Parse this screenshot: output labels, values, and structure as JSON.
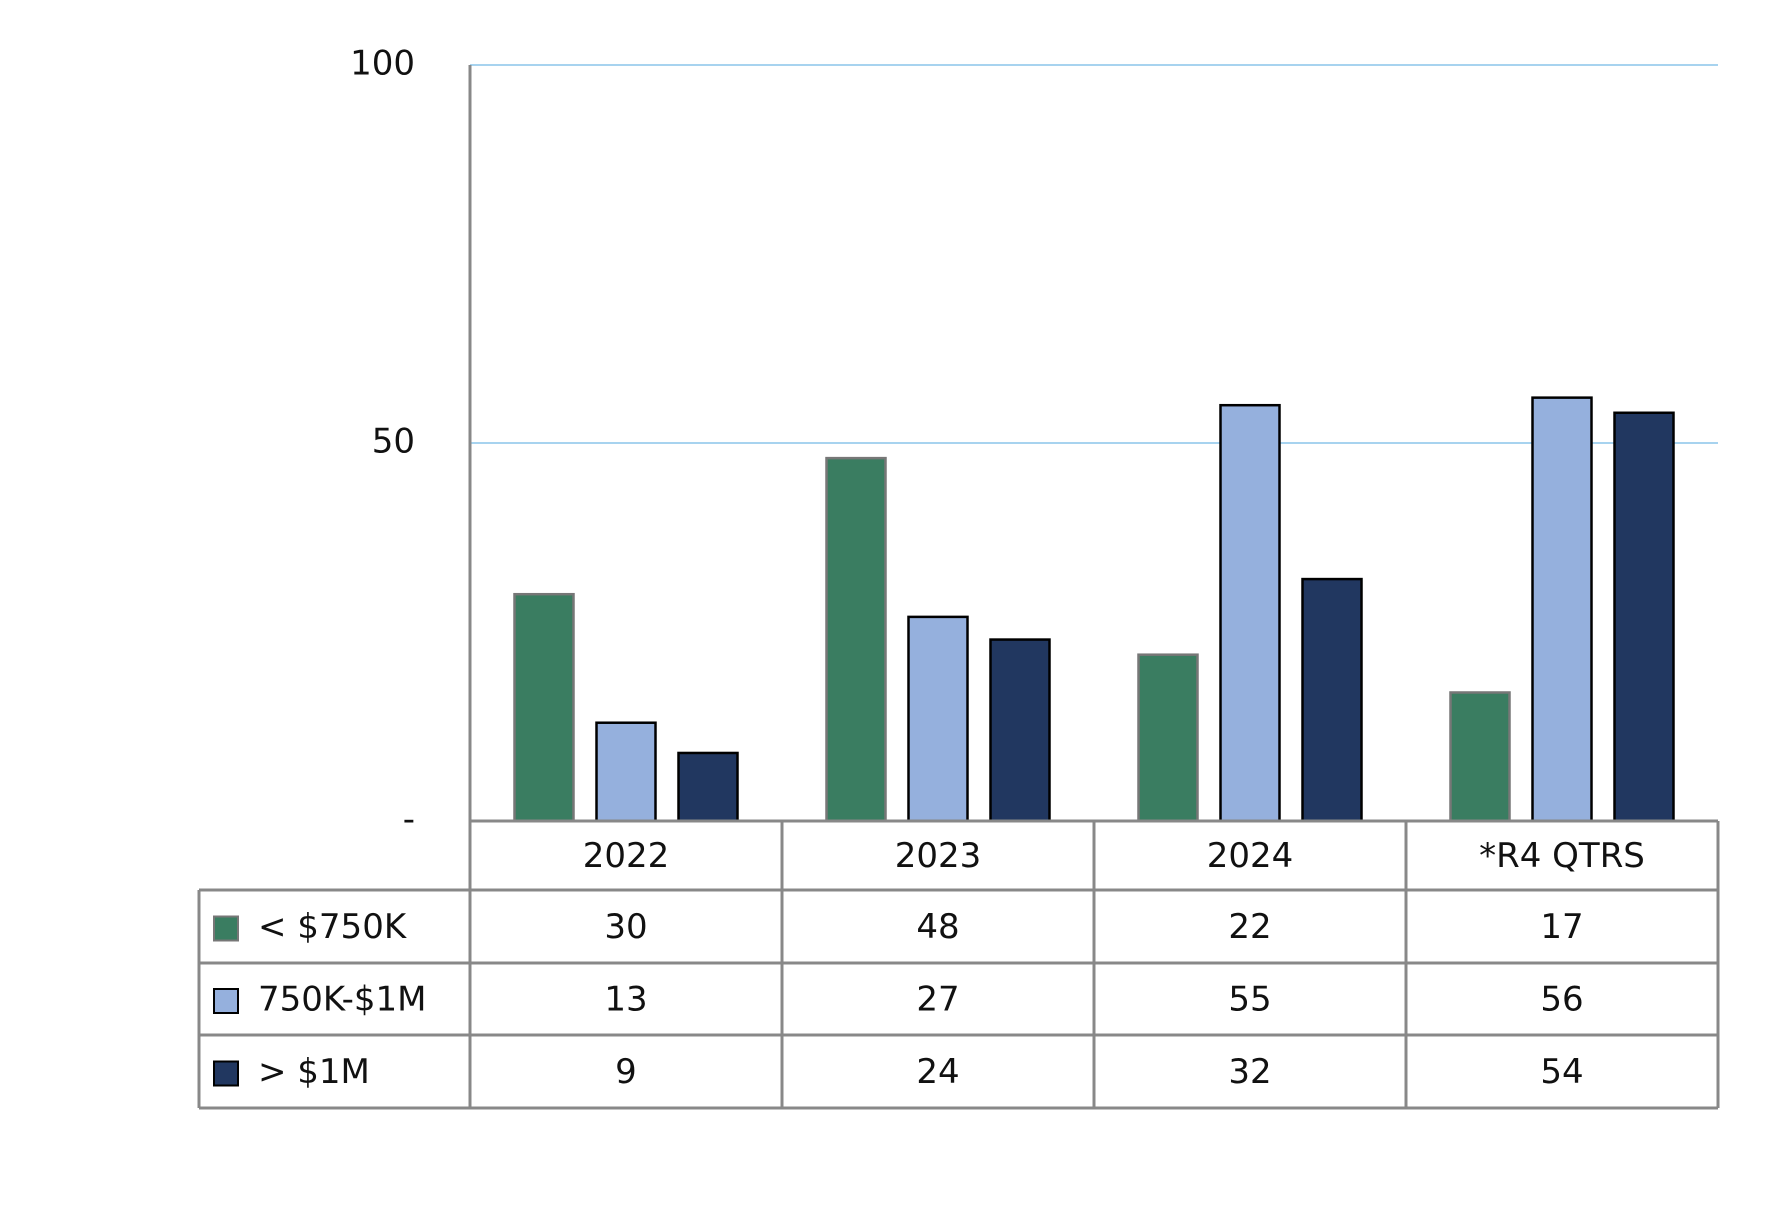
{
  "chart_data": {
    "type": "bar",
    "categories": [
      "2022",
      "2023",
      "2024",
      "*R4 QTRS"
    ],
    "series": [
      {
        "name": "< $750K",
        "color": "#3a7d61",
        "values": [
          30,
          48,
          22,
          17
        ]
      },
      {
        "name": "750K-$1M",
        "color": "#95b0dd",
        "values": [
          13,
          27,
          55,
          56
        ]
      },
      {
        "name": "> $1M",
        "color": "#213760",
        "values": [
          9,
          24,
          32,
          54
        ]
      }
    ],
    "ylim": [
      0,
      100
    ],
    "yticks": [
      {
        "value": 0,
        "label": "-"
      },
      50,
      100
    ],
    "grid": true,
    "data_table": true
  }
}
